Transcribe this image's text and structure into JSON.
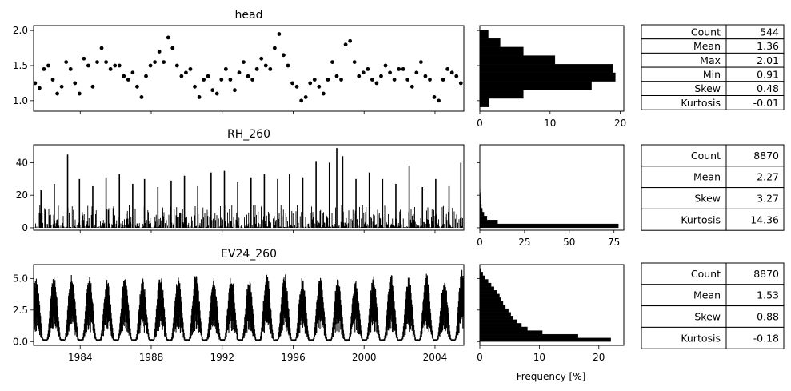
{
  "chart_data": [
    {
      "type": "scatter",
      "title": "head",
      "xlabel": "",
      "ylabel": "",
      "xlim": [
        "1981-05",
        "2005-08"
      ],
      "ylim": [
        0.85,
        2.07
      ],
      "yticks": [
        "1.0",
        "1.5",
        "2.0"
      ],
      "ytick_values": [
        1.0,
        1.5,
        2.0
      ],
      "xticks": [
        "1984",
        "1988",
        "1992",
        "1996",
        "2000",
        "2004"
      ],
      "xtick_years": [
        1984,
        1988,
        1992,
        1996,
        2000,
        2004
      ],
      "marker_color": "#000000",
      "series": [
        {
          "x": [
            "1981-06",
            "1981-09",
            "1981-12",
            "1982-03",
            "1982-06",
            "1982-09",
            "1982-12",
            "1983-03",
            "1983-06",
            "1983-09",
            "1983-12",
            "1984-03",
            "1984-06",
            "1984-09",
            "1984-12",
            "1985-03",
            "1985-06",
            "1985-09",
            "1985-12",
            "1986-03",
            "1986-06",
            "1986-09",
            "1986-12",
            "1987-03",
            "1987-06",
            "1987-09",
            "1987-12",
            "1988-03",
            "1988-06",
            "1988-09",
            "1988-12",
            "1989-03",
            "1989-06",
            "1989-09",
            "1989-12",
            "1990-03",
            "1990-06",
            "1990-09",
            "1990-12",
            "1991-03",
            "1991-06",
            "1991-09",
            "1991-12",
            "1992-03",
            "1992-06",
            "1992-09",
            "1992-12",
            "1993-03",
            "1993-06",
            "1993-09",
            "1993-12",
            "1994-03",
            "1994-06",
            "1994-09",
            "1994-12",
            "1995-03",
            "1995-06",
            "1995-09",
            "1995-12",
            "1996-03",
            "1996-06",
            "1996-09",
            "1996-12",
            "1997-03",
            "1997-06",
            "1997-09",
            "1997-12",
            "1998-03",
            "1998-06",
            "1998-09",
            "1998-12",
            "1999-03",
            "1999-06",
            "1999-09",
            "1999-12",
            "2000-03",
            "2000-06",
            "2000-09",
            "2000-12",
            "2001-03",
            "2001-06",
            "2001-09",
            "2001-12",
            "2002-03",
            "2002-06",
            "2002-09",
            "2002-12",
            "2003-03",
            "2003-06",
            "2003-09",
            "2003-12",
            "2004-03",
            "2004-06",
            "2004-09",
            "2004-12",
            "2005-03",
            "2005-06"
          ],
          "y": [
            1.25,
            1.18,
            1.45,
            1.5,
            1.3,
            1.1,
            1.2,
            1.55,
            1.45,
            1.25,
            1.1,
            1.6,
            1.5,
            1.2,
            1.55,
            1.75,
            1.55,
            1.45,
            1.5,
            1.5,
            1.35,
            1.3,
            1.4,
            1.2,
            1.05,
            1.35,
            1.5,
            1.55,
            1.7,
            1.55,
            1.9,
            1.75,
            1.5,
            1.35,
            1.4,
            1.45,
            1.2,
            1.05,
            1.3,
            1.35,
            1.15,
            1.1,
            1.3,
            1.45,
            1.3,
            1.15,
            1.4,
            1.55,
            1.35,
            1.3,
            1.45,
            1.6,
            1.5,
            1.45,
            1.75,
            1.95,
            1.65,
            1.5,
            1.25,
            1.2,
            1.0,
            1.05,
            1.25,
            1.3,
            1.2,
            1.1,
            1.3,
            1.55,
            1.35,
            1.3,
            1.8,
            1.85,
            1.55,
            1.35,
            1.4,
            1.45,
            1.3,
            1.25,
            1.35,
            1.5,
            1.4,
            1.3,
            1.45,
            1.45,
            1.3,
            1.2,
            1.4,
            1.55,
            1.35,
            1.3,
            1.05,
            1.0,
            1.3,
            1.45,
            1.4,
            1.35,
            1.25
          ]
        }
      ]
    },
    {
      "type": "line",
      "title": "RH_260",
      "xlabel": "",
      "ylabel": "",
      "ylim": [
        -1.5,
        51
      ],
      "yticks": [
        "0",
        "20",
        "40"
      ],
      "ytick_values": [
        0,
        20,
        40
      ],
      "line_color": "#000000",
      "peaks": {
        "x": [
          "1981-10",
          "1982-07",
          "1983-04",
          "1983-12",
          "1984-09",
          "1985-06",
          "1986-03",
          "1986-12",
          "1987-08",
          "1988-05",
          "1989-02",
          "1989-11",
          "1990-08",
          "1991-05",
          "1992-02",
          "1992-11",
          "1993-08",
          "1994-05",
          "1995-02",
          "1995-10",
          "1996-07",
          "1997-04",
          "1998-01",
          "1998-06",
          "1998-10",
          "1999-07",
          "2000-04",
          "2001-01",
          "2001-10",
          "2002-07",
          "2003-04",
          "2004-01",
          "2004-10",
          "2005-06"
        ],
        "y": [
          23,
          27,
          45,
          30,
          26,
          31,
          33,
          27,
          30,
          25,
          29,
          32,
          26,
          34,
          35,
          28,
          31,
          33,
          30,
          33,
          31,
          41,
          40,
          49,
          44,
          30,
          34,
          30,
          27,
          38,
          25,
          30,
          26,
          40
        ]
      }
    },
    {
      "type": "line",
      "title": "EV24_260",
      "xlabel": "",
      "ylabel": "",
      "ylim": [
        -0.3,
        6.1
      ],
      "yticks": [
        "0.0",
        "2.5",
        "5.0"
      ],
      "ytick_values": [
        0.0,
        2.5,
        5.0
      ],
      "line_color": "#000000",
      "seasonal_peaks": {
        "years": [
          1981,
          1982,
          1983,
          1984,
          1985,
          1986,
          1987,
          1988,
          1989,
          1990,
          1991,
          1992,
          1993,
          1994,
          1995,
          1996,
          1997,
          1998,
          1999,
          2000,
          2001,
          2002,
          2003,
          2004,
          2005
        ],
        "peak": [
          5.0,
          5.3,
          5.5,
          5.2,
          5.0,
          5.3,
          5.0,
          5.4,
          5.2,
          5.5,
          5.1,
          5.3,
          5.0,
          5.4,
          5.5,
          5.1,
          5.3,
          5.2,
          5.0,
          5.3,
          5.5,
          5.2,
          5.4,
          5.0,
          5.7
        ]
      }
    },
    {
      "type": "bar",
      "orientation": "horizontal",
      "subtitle_of": "head",
      "xlabel": "",
      "xlim": [
        0,
        20.5
      ],
      "xticks": [
        "0",
        "10",
        "20"
      ],
      "xtick_values": [
        0,
        10,
        20
      ],
      "bin_edges": [
        0.91,
        1.032,
        1.154,
        1.276,
        1.398,
        1.52,
        1.642,
        1.764,
        1.886,
        2.008
      ],
      "values": [
        1.3,
        6.2,
        15.9,
        19.3,
        18.9,
        10.7,
        6.2,
        2.9,
        1.2
      ],
      "bar_color": "#000000"
    },
    {
      "type": "bar",
      "orientation": "horizontal",
      "subtitle_of": "RH_260",
      "xlabel": "",
      "xlim": [
        0,
        80.5
      ],
      "xticks": [
        "0",
        "25",
        "50",
        "75"
      ],
      "xtick_values": [
        0,
        25,
        50,
        75
      ],
      "bin_edges": [
        0,
        2.4,
        4.8,
        7.2,
        9.6,
        12,
        14.4,
        16.8,
        19.2,
        21.6,
        24,
        26.4
      ],
      "values": [
        77.5,
        10.0,
        4.0,
        2.3,
        1.4,
        0.9,
        0.6,
        0.4,
        0.3,
        0.2,
        0.1
      ],
      "bar_color": "#000000"
    },
    {
      "type": "bar",
      "orientation": "horizontal",
      "subtitle_of": "EV24_260",
      "xlabel": "Frequency [%]",
      "xlim": [
        0,
        24.2
      ],
      "xticks": [
        "0",
        "10",
        "20"
      ],
      "xtick_values": [
        0,
        10,
        20
      ],
      "bin_edges": [
        0,
        0.29,
        0.58,
        0.87,
        1.16,
        1.45,
        1.74,
        2.03,
        2.32,
        2.61,
        2.9,
        3.19,
        3.48,
        3.77,
        4.06,
        4.35,
        4.64,
        4.93,
        5.22,
        5.51,
        5.8
      ],
      "values": [
        22.0,
        16.5,
        10.5,
        8.0,
        7.0,
        6.2,
        5.6,
        5.2,
        4.8,
        4.3,
        3.9,
        3.6,
        3.3,
        2.9,
        2.4,
        1.9,
        1.4,
        0.9,
        0.5,
        0.2
      ],
      "bar_color": "#000000"
    },
    {
      "type": "table",
      "of": "head",
      "rows": [
        [
          "Count",
          "544"
        ],
        [
          "Mean",
          "1.36"
        ],
        [
          "Max",
          "2.01"
        ],
        [
          "Min",
          "0.91"
        ],
        [
          "Skew",
          "0.48"
        ],
        [
          "Kurtosis",
          "-0.01"
        ]
      ]
    },
    {
      "type": "table",
      "of": "RH_260",
      "rows": [
        [
          "Count",
          "8870"
        ],
        [
          "Mean",
          "2.27"
        ],
        [
          "Skew",
          "3.27"
        ],
        [
          "Kurtosis",
          "14.36"
        ]
      ]
    },
    {
      "type": "table",
      "of": "EV24_260",
      "rows": [
        [
          "Count",
          "8870"
        ],
        [
          "Mean",
          "1.53"
        ],
        [
          "Skew",
          "0.88"
        ],
        [
          "Kurtosis",
          "-0.18"
        ]
      ]
    }
  ]
}
